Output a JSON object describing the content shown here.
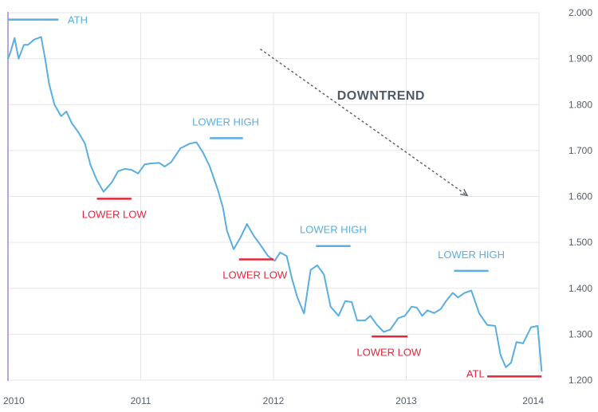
{
  "chart_data": {
    "type": "line",
    "title": "",
    "xlabel": "",
    "ylabel": "",
    "xlim": [
      2010,
      2014
    ],
    "ylim": [
      1.2,
      2.0
    ],
    "x_ticks": [
      "2010",
      "2011",
      "2012",
      "2013",
      "2014"
    ],
    "y_ticks": [
      "2.000",
      "1.900",
      "1.800",
      "1.700",
      "1.600",
      "1.500",
      "1.400",
      "1.300",
      "1.200"
    ],
    "grid": true,
    "y_axis_side": "right",
    "series_color": "#5aaee0",
    "high_color": "#5aaee0",
    "low_color": "#e0283c",
    "x": [
      2010.0,
      2010.02,
      2010.05,
      2010.08,
      2010.12,
      2010.15,
      2010.2,
      2010.25,
      2010.28,
      2010.31,
      2010.35,
      2010.4,
      2010.44,
      2010.48,
      2010.53,
      2010.58,
      2010.62,
      2010.67,
      2010.72,
      2010.78,
      2010.83,
      2010.88,
      2010.93,
      2010.98,
      2011.03,
      2011.08,
      2011.14,
      2011.18,
      2011.23,
      2011.3,
      2011.37,
      2011.42,
      2011.47,
      2011.52,
      2011.58,
      2011.62,
      2011.65,
      2011.7,
      2011.75,
      2011.8,
      2011.85,
      2011.9,
      2011.96,
      2012.01,
      2012.05,
      2012.1,
      2012.14,
      2012.18,
      2012.23,
      2012.28,
      2012.33,
      2012.38,
      2012.43,
      2012.49,
      2012.54,
      2012.59,
      2012.63,
      2012.69,
      2012.73,
      2012.78,
      2012.83,
      2012.88,
      2012.94,
      2012.99,
      2013.04,
      2013.08,
      2013.12,
      2013.16,
      2013.21,
      2013.26,
      2013.3,
      2013.35,
      2013.39,
      2013.44,
      2013.49,
      2013.55,
      2013.61,
      2013.67,
      2013.71,
      2013.75,
      2013.79,
      2013.83,
      2013.88,
      2013.94,
      2013.99,
      2014.02
    ],
    "values": [
      1.9,
      1.915,
      1.945,
      1.9,
      1.93,
      1.93,
      1.942,
      1.947,
      1.9,
      1.845,
      1.8,
      1.775,
      1.785,
      1.76,
      1.74,
      1.715,
      1.67,
      1.635,
      1.61,
      1.63,
      1.655,
      1.66,
      1.658,
      1.65,
      1.67,
      1.672,
      1.673,
      1.665,
      1.675,
      1.705,
      1.715,
      1.718,
      1.695,
      1.665,
      1.615,
      1.575,
      1.525,
      1.485,
      1.51,
      1.54,
      1.515,
      1.495,
      1.47,
      1.46,
      1.478,
      1.47,
      1.42,
      1.38,
      1.345,
      1.44,
      1.45,
      1.43,
      1.36,
      1.34,
      1.372,
      1.37,
      1.33,
      1.33,
      1.34,
      1.32,
      1.305,
      1.31,
      1.335,
      1.34,
      1.36,
      1.358,
      1.34,
      1.352,
      1.346,
      1.355,
      1.372,
      1.39,
      1.38,
      1.39,
      1.395,
      1.345,
      1.32,
      1.318,
      1.255,
      1.228,
      1.238,
      1.283,
      1.28,
      1.315,
      1.318,
      1.22
    ],
    "annotations": [
      {
        "label": "ATH",
        "kind": "high",
        "y": 1.985,
        "x_start": 2010.0,
        "x_end": 2010.38,
        "label_x": 2010.45
      },
      {
        "label": "LOWER LOW",
        "kind": "low",
        "y": 1.595,
        "x_start": 2010.67,
        "x_end": 2010.93,
        "label_x": 2010.8
      },
      {
        "label": "LOWER HIGH",
        "kind": "high",
        "y": 1.727,
        "x_start": 2011.52,
        "x_end": 2011.77,
        "label_x": 2011.64
      },
      {
        "label": "LOWER LOW",
        "kind": "low",
        "y": 1.463,
        "x_start": 2011.74,
        "x_end": 2012.0,
        "label_x": 2011.86
      },
      {
        "label": "LOWER HIGH",
        "kind": "high",
        "y": 1.492,
        "x_start": 2012.32,
        "x_end": 2012.58,
        "label_x": 2012.45
      },
      {
        "label": "LOWER LOW",
        "kind": "low",
        "y": 1.295,
        "x_start": 2012.74,
        "x_end": 2013.01,
        "label_x": 2012.87
      },
      {
        "label": "LOWER HIGH",
        "kind": "high",
        "y": 1.438,
        "x_start": 2013.36,
        "x_end": 2013.62,
        "label_x": 2013.49
      },
      {
        "label": "ATL",
        "kind": "low",
        "y": 1.208,
        "x_start": 2013.61,
        "x_end": 2014.02,
        "label_x": 2013.59
      }
    ],
    "trend": {
      "label": "DOWNTREND",
      "label_x": 2012.81,
      "label_y": 1.811,
      "arrow_from": [
        2011.9,
        1.921
      ],
      "arrow_to": [
        2013.46,
        1.602
      ]
    }
  }
}
